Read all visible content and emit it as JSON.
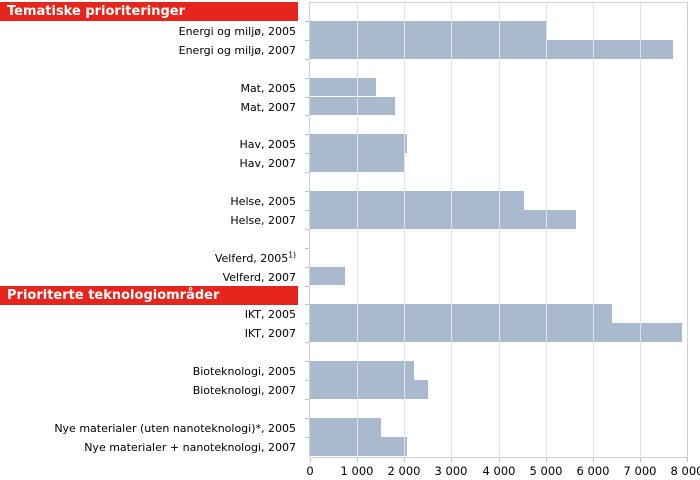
{
  "chart_data": {
    "type": "bar",
    "orientation": "horizontal",
    "unit_note": "values estimated from gridlines",
    "xlim": [
      0,
      8000
    ],
    "x_tick_labels": [
      "0",
      "1 000",
      "2 000",
      "3 000",
      "4 000",
      "5 000",
      "6 000",
      "7 000",
      "8 000"
    ],
    "grid": "vertical-only",
    "legend": "none",
    "sections": [
      {
        "header": "Tematiske prioriteringer",
        "groups": [
          {
            "bars": [
              {
                "label": "Energi og miljø, 2005",
                "value": 5000
              },
              {
                "label": "Energi og miljø, 2007",
                "value": 7700
              }
            ]
          },
          {
            "bars": [
              {
                "label": "Mat, 2005",
                "value": 1400
              },
              {
                "label": "Mat, 2007",
                "value": 1800
              }
            ]
          },
          {
            "bars": [
              {
                "label": "Hav, 2005",
                "value": 2050
              },
              {
                "label": "Hav, 2007",
                "value": 2000
              }
            ]
          },
          {
            "bars": [
              {
                "label": "Helse, 2005",
                "value": 4550
              },
              {
                "label": "Helse, 2007",
                "value": 5650
              }
            ]
          },
          {
            "bars": [
              {
                "label": "Velferd, 2005",
                "superscript": "1)",
                "value": null
              },
              {
                "label": "Velferd, 2007",
                "value": 750
              }
            ]
          }
        ]
      },
      {
        "header": "Prioriterte teknologiområder",
        "groups": [
          {
            "bars": [
              {
                "label": "IKT, 2005",
                "value": 6400
              },
              {
                "label": "IKT, 2007",
                "value": 7900
              }
            ]
          },
          {
            "bars": [
              {
                "label": "Bioteknologi, 2005",
                "value": 2200
              },
              {
                "label": "Bioteknologi, 2007",
                "value": 2500
              }
            ]
          },
          {
            "bars": [
              {
                "label": "Nye materialer (uten nanoteknologi)*, 2005",
                "value": 1500
              },
              {
                "label": "Nye materialer + nanoteknologi, 2007",
                "value": 2050
              }
            ]
          }
        ]
      }
    ]
  },
  "colors": {
    "bar": "#a9bacf",
    "section_header_bg": "#e6261c",
    "section_header_text": "#ffffff",
    "grid_line": "#dde4ee",
    "plot_border": "#c9d4e2",
    "tick": "#b6c2d2",
    "text": "#000000"
  }
}
